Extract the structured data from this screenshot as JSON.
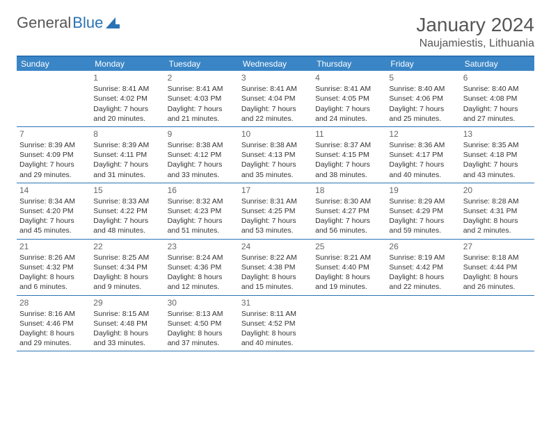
{
  "logo": {
    "text1": "General",
    "text2": "Blue"
  },
  "header": {
    "month": "January 2024",
    "location": "Naujamiestis, Lithuania"
  },
  "colors": {
    "accent": "#2a72b5",
    "header_bg": "#3a85c6",
    "text": "#333333",
    "muted": "#666666"
  },
  "calendar": {
    "type": "table",
    "dow": [
      "Sunday",
      "Monday",
      "Tuesday",
      "Wednesday",
      "Thursday",
      "Friday",
      "Saturday"
    ],
    "weeks": [
      [
        {
          "day": "",
          "sunrise": "",
          "sunset": "",
          "daylight": ""
        },
        {
          "day": "1",
          "sunrise": "Sunrise: 8:41 AM",
          "sunset": "Sunset: 4:02 PM",
          "daylight": "Daylight: 7 hours and 20 minutes."
        },
        {
          "day": "2",
          "sunrise": "Sunrise: 8:41 AM",
          "sunset": "Sunset: 4:03 PM",
          "daylight": "Daylight: 7 hours and 21 minutes."
        },
        {
          "day": "3",
          "sunrise": "Sunrise: 8:41 AM",
          "sunset": "Sunset: 4:04 PM",
          "daylight": "Daylight: 7 hours and 22 minutes."
        },
        {
          "day": "4",
          "sunrise": "Sunrise: 8:41 AM",
          "sunset": "Sunset: 4:05 PM",
          "daylight": "Daylight: 7 hours and 24 minutes."
        },
        {
          "day": "5",
          "sunrise": "Sunrise: 8:40 AM",
          "sunset": "Sunset: 4:06 PM",
          "daylight": "Daylight: 7 hours and 25 minutes."
        },
        {
          "day": "6",
          "sunrise": "Sunrise: 8:40 AM",
          "sunset": "Sunset: 4:08 PM",
          "daylight": "Daylight: 7 hours and 27 minutes."
        }
      ],
      [
        {
          "day": "7",
          "sunrise": "Sunrise: 8:39 AM",
          "sunset": "Sunset: 4:09 PM",
          "daylight": "Daylight: 7 hours and 29 minutes."
        },
        {
          "day": "8",
          "sunrise": "Sunrise: 8:39 AM",
          "sunset": "Sunset: 4:11 PM",
          "daylight": "Daylight: 7 hours and 31 minutes."
        },
        {
          "day": "9",
          "sunrise": "Sunrise: 8:38 AM",
          "sunset": "Sunset: 4:12 PM",
          "daylight": "Daylight: 7 hours and 33 minutes."
        },
        {
          "day": "10",
          "sunrise": "Sunrise: 8:38 AM",
          "sunset": "Sunset: 4:13 PM",
          "daylight": "Daylight: 7 hours and 35 minutes."
        },
        {
          "day": "11",
          "sunrise": "Sunrise: 8:37 AM",
          "sunset": "Sunset: 4:15 PM",
          "daylight": "Daylight: 7 hours and 38 minutes."
        },
        {
          "day": "12",
          "sunrise": "Sunrise: 8:36 AM",
          "sunset": "Sunset: 4:17 PM",
          "daylight": "Daylight: 7 hours and 40 minutes."
        },
        {
          "day": "13",
          "sunrise": "Sunrise: 8:35 AM",
          "sunset": "Sunset: 4:18 PM",
          "daylight": "Daylight: 7 hours and 43 minutes."
        }
      ],
      [
        {
          "day": "14",
          "sunrise": "Sunrise: 8:34 AM",
          "sunset": "Sunset: 4:20 PM",
          "daylight": "Daylight: 7 hours and 45 minutes."
        },
        {
          "day": "15",
          "sunrise": "Sunrise: 8:33 AM",
          "sunset": "Sunset: 4:22 PM",
          "daylight": "Daylight: 7 hours and 48 minutes."
        },
        {
          "day": "16",
          "sunrise": "Sunrise: 8:32 AM",
          "sunset": "Sunset: 4:23 PM",
          "daylight": "Daylight: 7 hours and 51 minutes."
        },
        {
          "day": "17",
          "sunrise": "Sunrise: 8:31 AM",
          "sunset": "Sunset: 4:25 PM",
          "daylight": "Daylight: 7 hours and 53 minutes."
        },
        {
          "day": "18",
          "sunrise": "Sunrise: 8:30 AM",
          "sunset": "Sunset: 4:27 PM",
          "daylight": "Daylight: 7 hours and 56 minutes."
        },
        {
          "day": "19",
          "sunrise": "Sunrise: 8:29 AM",
          "sunset": "Sunset: 4:29 PM",
          "daylight": "Daylight: 7 hours and 59 minutes."
        },
        {
          "day": "20",
          "sunrise": "Sunrise: 8:28 AM",
          "sunset": "Sunset: 4:31 PM",
          "daylight": "Daylight: 8 hours and 2 minutes."
        }
      ],
      [
        {
          "day": "21",
          "sunrise": "Sunrise: 8:26 AM",
          "sunset": "Sunset: 4:32 PM",
          "daylight": "Daylight: 8 hours and 6 minutes."
        },
        {
          "day": "22",
          "sunrise": "Sunrise: 8:25 AM",
          "sunset": "Sunset: 4:34 PM",
          "daylight": "Daylight: 8 hours and 9 minutes."
        },
        {
          "day": "23",
          "sunrise": "Sunrise: 8:24 AM",
          "sunset": "Sunset: 4:36 PM",
          "daylight": "Daylight: 8 hours and 12 minutes."
        },
        {
          "day": "24",
          "sunrise": "Sunrise: 8:22 AM",
          "sunset": "Sunset: 4:38 PM",
          "daylight": "Daylight: 8 hours and 15 minutes."
        },
        {
          "day": "25",
          "sunrise": "Sunrise: 8:21 AM",
          "sunset": "Sunset: 4:40 PM",
          "daylight": "Daylight: 8 hours and 19 minutes."
        },
        {
          "day": "26",
          "sunrise": "Sunrise: 8:19 AM",
          "sunset": "Sunset: 4:42 PM",
          "daylight": "Daylight: 8 hours and 22 minutes."
        },
        {
          "day": "27",
          "sunrise": "Sunrise: 8:18 AM",
          "sunset": "Sunset: 4:44 PM",
          "daylight": "Daylight: 8 hours and 26 minutes."
        }
      ],
      [
        {
          "day": "28",
          "sunrise": "Sunrise: 8:16 AM",
          "sunset": "Sunset: 4:46 PM",
          "daylight": "Daylight: 8 hours and 29 minutes."
        },
        {
          "day": "29",
          "sunrise": "Sunrise: 8:15 AM",
          "sunset": "Sunset: 4:48 PM",
          "daylight": "Daylight: 8 hours and 33 minutes."
        },
        {
          "day": "30",
          "sunrise": "Sunrise: 8:13 AM",
          "sunset": "Sunset: 4:50 PM",
          "daylight": "Daylight: 8 hours and 37 minutes."
        },
        {
          "day": "31",
          "sunrise": "Sunrise: 8:11 AM",
          "sunset": "Sunset: 4:52 PM",
          "daylight": "Daylight: 8 hours and 40 minutes."
        },
        {
          "day": "",
          "sunrise": "",
          "sunset": "",
          "daylight": ""
        },
        {
          "day": "",
          "sunrise": "",
          "sunset": "",
          "daylight": ""
        },
        {
          "day": "",
          "sunrise": "",
          "sunset": "",
          "daylight": ""
        }
      ]
    ]
  }
}
